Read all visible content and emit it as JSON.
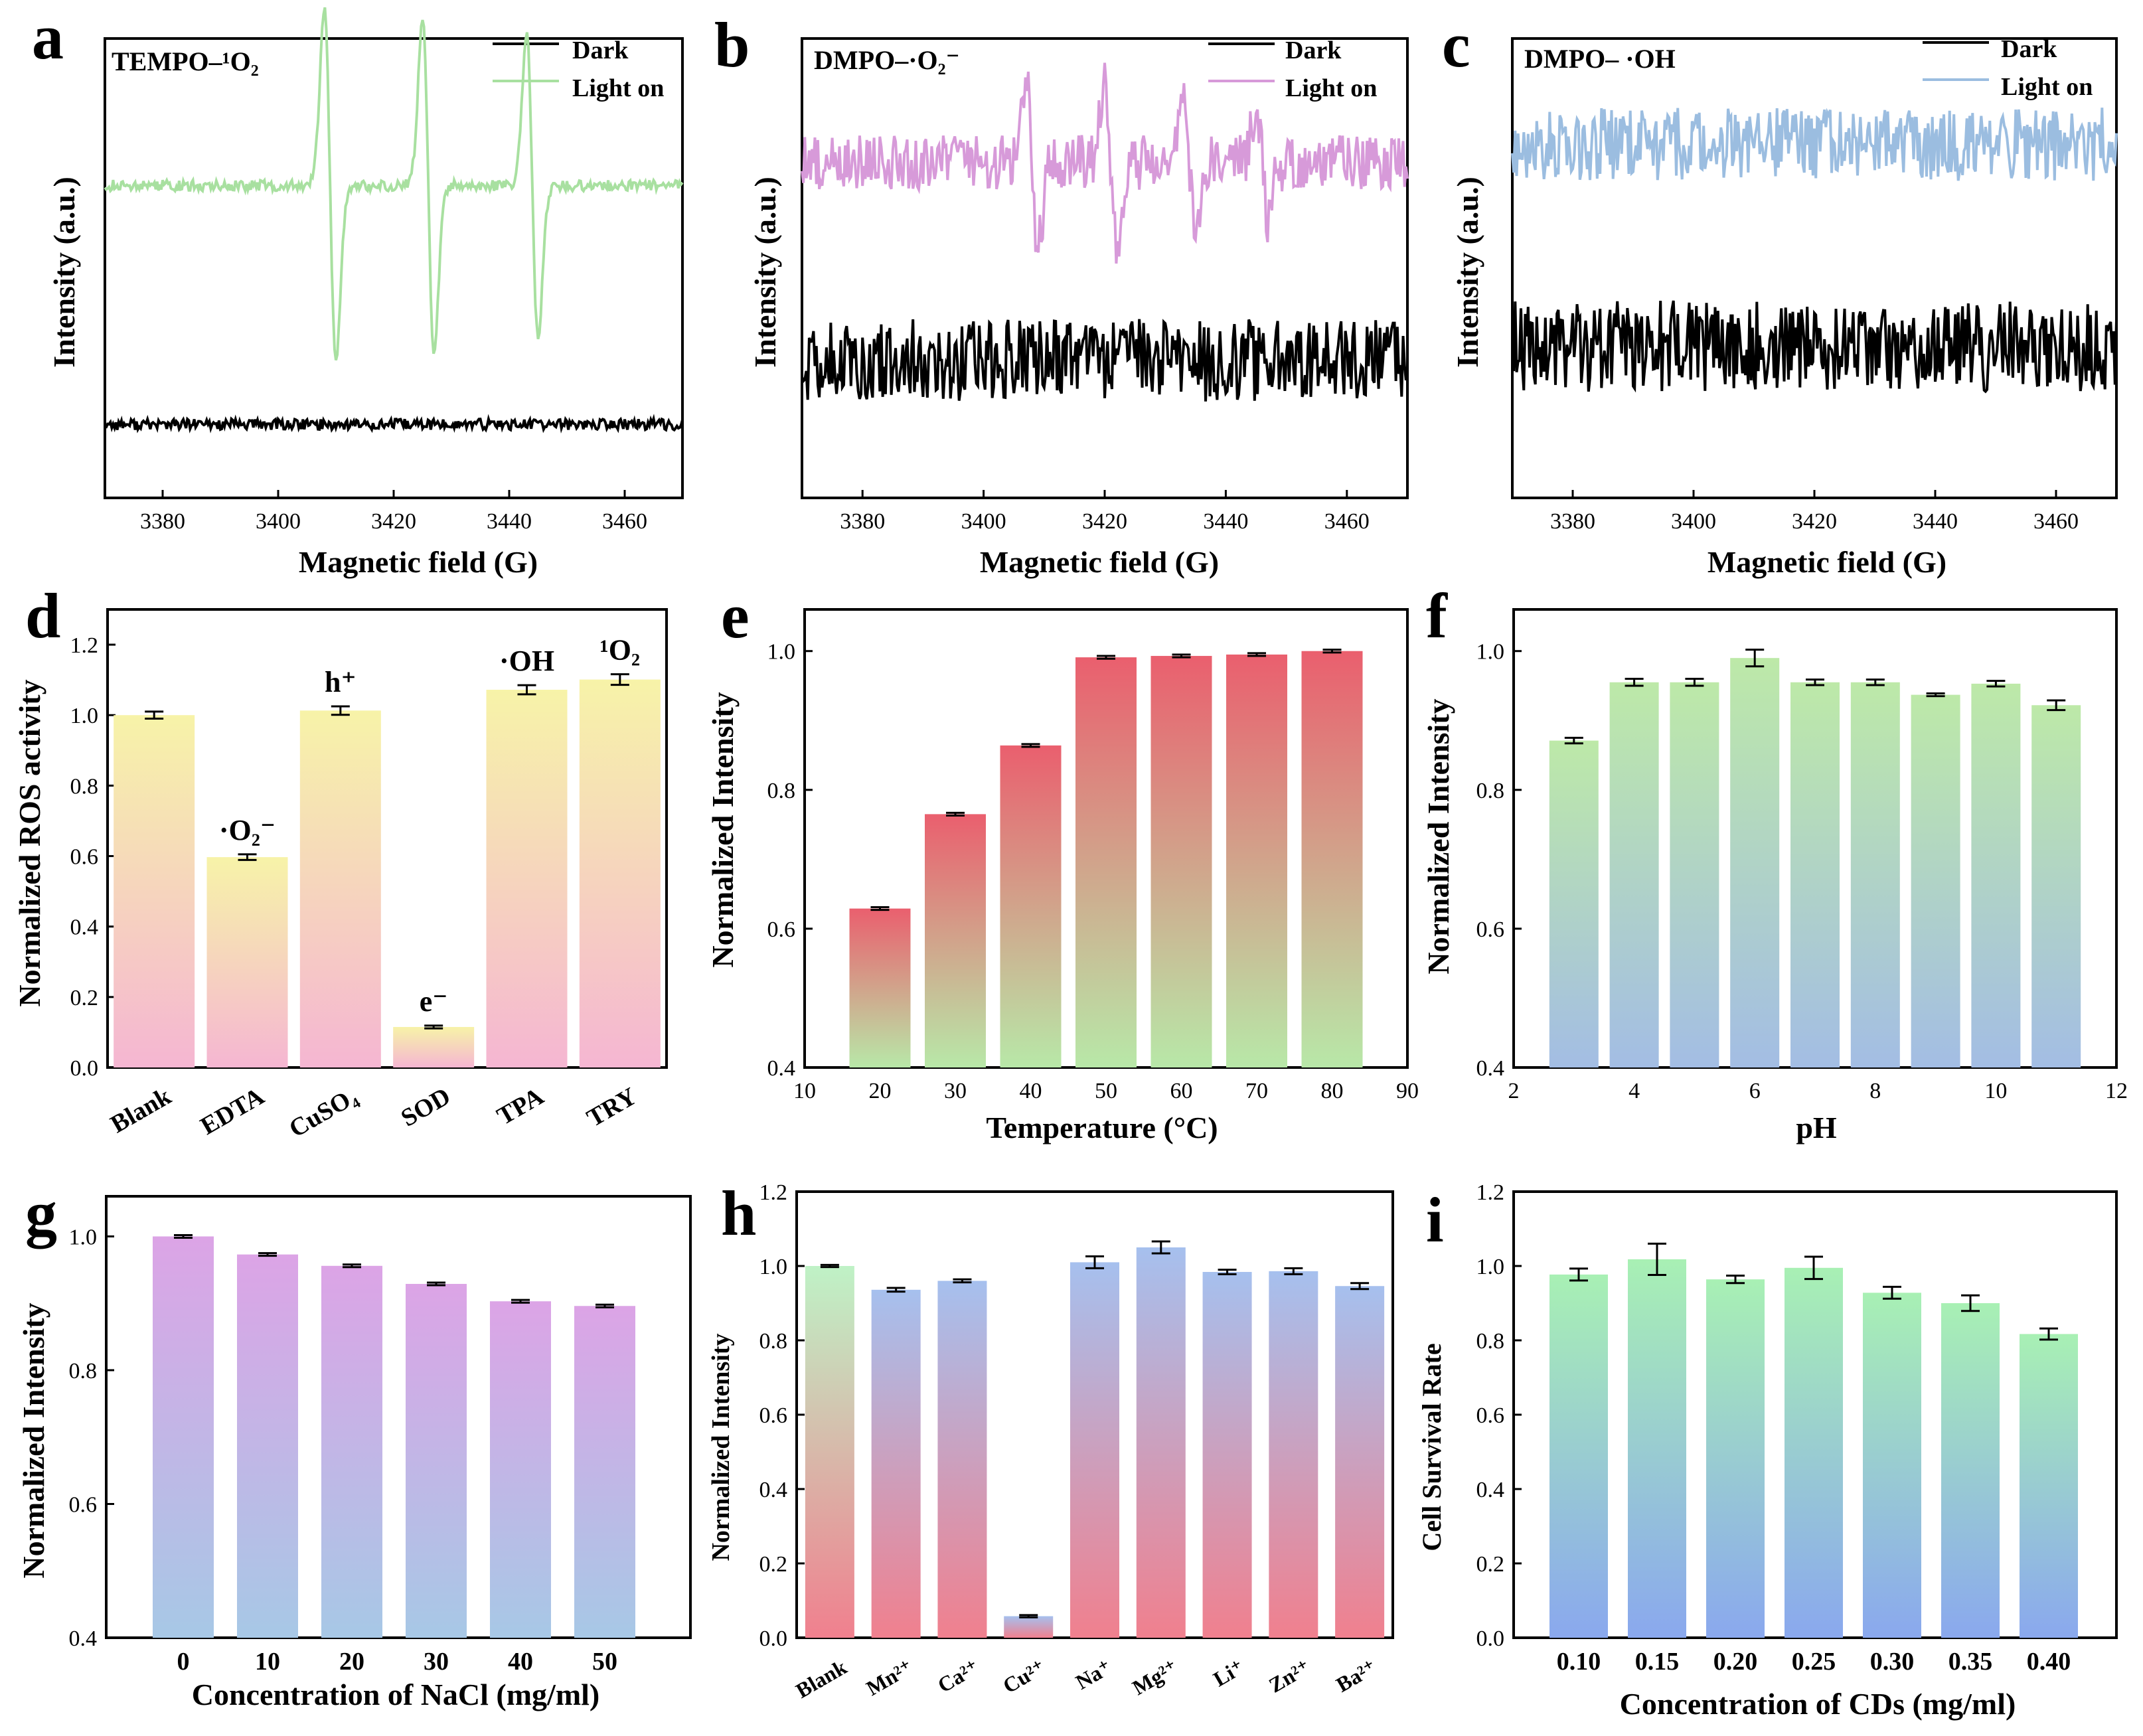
{
  "figure": {
    "panels": [
      "a",
      "b",
      "c",
      "d",
      "e",
      "f",
      "g",
      "h",
      "i"
    ]
  },
  "chart_data": [
    {
      "panel": "a",
      "type": "line",
      "title": "TEMPO–¹O₂",
      "xlabel": "Magnetic field (G)",
      "ylabel": "Intensity (a.u.)",
      "xlim": [
        3370,
        3470
      ],
      "xticks": [
        3380,
        3400,
        3420,
        3440,
        3460
      ],
      "series": [
        {
          "name": "Dark",
          "color": "#000000",
          "baseline": 0.16,
          "noise": 0.012,
          "peaks": []
        },
        {
          "name": "Light on",
          "color": "#a8e0a0",
          "baseline": 0.68,
          "noise": 0.012,
          "peaks": [
            {
              "x": 3409,
              "amp": 0.38
            },
            {
              "x": 3426,
              "amp": 0.36
            },
            {
              "x": 3444,
              "amp": 0.33
            }
          ]
        }
      ]
    },
    {
      "panel": "b",
      "type": "line",
      "title": "DMPO–·O₂⁻",
      "xlabel": "Magnetic field (G)",
      "ylabel": "Intensity (a.u.)",
      "xlim": [
        3370,
        3470
      ],
      "xticks": [
        3380,
        3400,
        3420,
        3440,
        3460
      ],
      "series": [
        {
          "name": "Dark",
          "color": "#000000",
          "baseline": 0.3,
          "noise": 0.09,
          "peaks": []
        },
        {
          "name": "Light on",
          "color": "#d79ad9",
          "baseline": 0.73,
          "noise": 0.06,
          "peaks": [
            {
              "x": 3408,
              "amp": 0.18
            },
            {
              "x": 3421,
              "amp": 0.17
            },
            {
              "x": 3434,
              "amp": 0.16
            },
            {
              "x": 3446,
              "amp": 0.12
            }
          ]
        }
      ]
    },
    {
      "panel": "c",
      "type": "line",
      "title": "DMPO– ·OH",
      "xlabel": "Magnetic field (G)",
      "ylabel": "Intensity (a.u.)",
      "xlim": [
        3370,
        3470
      ],
      "xticks": [
        3380,
        3400,
        3420,
        3440,
        3460
      ],
      "series": [
        {
          "name": "Dark",
          "color": "#000000",
          "baseline": 0.33,
          "noise": 0.1,
          "peaks": []
        },
        {
          "name": "Light on",
          "color": "#9bbde0",
          "baseline": 0.77,
          "noise": 0.08,
          "peaks": []
        }
      ]
    },
    {
      "panel": "d",
      "type": "bar",
      "xlabel": "",
      "ylabel": "Normalized ROS activity",
      "ylim": [
        0,
        1.3
      ],
      "yticks": [
        "0.0",
        "0.2",
        "0.4",
        "0.6",
        "0.8",
        "1.0",
        "1.2"
      ],
      "categories": [
        "Blank",
        "EDTA",
        "CuSO₄",
        "SOD",
        "TPA",
        "TRY"
      ],
      "values": [
        1.0,
        0.597,
        1.013,
        0.115,
        1.072,
        1.101
      ],
      "errors": [
        0.01,
        0.008,
        0.012,
        0.004,
        0.013,
        0.015
      ],
      "annotations": [
        "",
        "·O₂⁻",
        "h⁺",
        "e⁻",
        "·OH",
        "¹O₂"
      ],
      "gradient": [
        "#f7f3a8",
        "#f5b6d2"
      ]
    },
    {
      "panel": "e",
      "type": "bar",
      "xlabel": "Temperature (°C)",
      "ylabel": "Normalized Intensity",
      "ylim": [
        0.4,
        1.06
      ],
      "yticks": [
        "0.4",
        "0.6",
        "0.8",
        "1.0"
      ],
      "xlim": [
        10,
        90
      ],
      "xticks": [
        "10",
        "20",
        "30",
        "40",
        "50",
        "60",
        "70",
        "80",
        "90"
      ],
      "x": [
        20,
        30,
        40,
        50,
        60,
        70,
        80
      ],
      "values": [
        0.629,
        0.765,
        0.864,
        0.991,
        0.993,
        0.995,
        1.0
      ],
      "errors": [
        0.002,
        0.002,
        0.002,
        0.002,
        0.002,
        0.002,
        0.002
      ],
      "gradient": [
        "#ea5f6e",
        "#b8e8a8"
      ]
    },
    {
      "panel": "f",
      "type": "bar",
      "xlabel": "pH",
      "ylabel": "Normalized Intensity",
      "ylim": [
        0.4,
        1.06
      ],
      "yticks": [
        "0.4",
        "0.6",
        "0.8",
        "1.0"
      ],
      "xlim": [
        2,
        12
      ],
      "xticks": [
        "2",
        "4",
        "6",
        "8",
        "10",
        "12"
      ],
      "x": [
        3,
        4,
        5,
        6,
        7,
        8,
        9,
        10,
        11
      ],
      "values": [
        0.871,
        0.955,
        0.955,
        0.99,
        0.955,
        0.955,
        0.937,
        0.953,
        0.922
      ],
      "errors": [
        0.004,
        0.005,
        0.005,
        0.012,
        0.004,
        0.004,
        0.002,
        0.004,
        0.007
      ],
      "gradient": [
        "#bde9a8",
        "#a3bde4"
      ]
    },
    {
      "panel": "g",
      "type": "bar",
      "xlabel": "Concentration of NaCl (mg/ml)",
      "ylabel": "Normalized Intensity",
      "ylim": [
        0.4,
        1.06
      ],
      "yticks": [
        "0.4",
        "0.6",
        "0.8",
        "1.0"
      ],
      "categories": [
        "0",
        "10",
        "20",
        "30",
        "40",
        "50"
      ],
      "values": [
        1.0,
        0.973,
        0.956,
        0.929,
        0.903,
        0.896
      ],
      "errors": [
        0.002,
        0.002,
        0.002,
        0.002,
        0.002,
        0.002
      ],
      "gradient": [
        "#dca4e6",
        "#a7c8e6"
      ]
    },
    {
      "panel": "h",
      "type": "bar",
      "xlabel": "",
      "ylabel": "Normalized Intensity",
      "ylim": [
        0,
        1.2
      ],
      "yticks": [
        "0.0",
        "0.2",
        "0.4",
        "0.6",
        "0.8",
        "1.0",
        "1.2"
      ],
      "categories": [
        "Blank",
        "Mn²⁺",
        "Ca²⁺",
        "Cu²⁺",
        "Na⁺",
        "Mg²⁺",
        "Li⁺",
        "Zn²⁺",
        "Ba²⁺"
      ],
      "values": [
        1.0,
        0.936,
        0.96,
        0.058,
        1.01,
        1.05,
        0.984,
        0.986,
        0.946
      ],
      "errors": [
        0.003,
        0.005,
        0.004,
        0.003,
        0.016,
        0.016,
        0.006,
        0.008,
        0.008
      ],
      "gradient": [
        "#a6c0ee",
        "#f0808e"
      ],
      "firstBarGradient": [
        "#bff2c6",
        "#f0808e"
      ]
    },
    {
      "panel": "i",
      "type": "bar",
      "xlabel": "Concentration of CDs (mg/ml)",
      "ylabel": "Cell Survival Rate",
      "ylim": [
        0,
        1.2
      ],
      "yticks": [
        "0.0",
        "0.2",
        "0.4",
        "0.6",
        "0.8",
        "1.0",
        "1.2"
      ],
      "categories": [
        "0.10",
        "0.15",
        "0.20",
        "0.25",
        "0.30",
        "0.35",
        "0.40"
      ],
      "values": [
        0.977,
        1.018,
        0.964,
        0.995,
        0.928,
        0.9,
        0.817
      ],
      "errors": [
        0.016,
        0.042,
        0.01,
        0.03,
        0.016,
        0.021,
        0.015
      ],
      "gradient": [
        "#a8f0b4",
        "#8aa8ee"
      ]
    }
  ]
}
